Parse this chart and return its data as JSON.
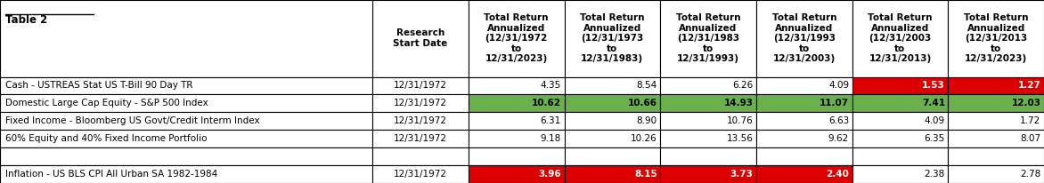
{
  "title": "Table 2",
  "col_headers": [
    "Research\nStart Date",
    "Total Return\nAnnualized\n(12/31/1972\nto\n12/31/2023)",
    "Total Return\nAnnualized\n(12/31/1973\nto\n12/31/1983)",
    "Total Return\nAnnualized\n(12/31/1983\nto\n12/31/1993)",
    "Total Return\nAnnualized\n(12/31/1993\nto\n12/31/2003)",
    "Total Return\nAnnualized\n(12/31/2003\nto\n12/31/2013)",
    "Total Return\nAnnualized\n(12/31/2013\nto\n12/31/2023)"
  ],
  "rows": [
    {
      "label": "Cash - USTREAS Stat US T-Bill 90 Day TR",
      "start_date": "12/31/1972",
      "values": [
        "4.35",
        "8.54",
        "6.26",
        "4.09",
        "1.53",
        "1.27"
      ],
      "cell_colors": [
        "white",
        "white",
        "white",
        "white",
        "red",
        "red"
      ]
    },
    {
      "label": "Domestic Large Cap Equity - S&P 500 Index",
      "start_date": "12/31/1972",
      "values": [
        "10.62",
        "10.66",
        "14.93",
        "11.07",
        "7.41",
        "12.03"
      ],
      "cell_colors": [
        "green",
        "green",
        "green",
        "green",
        "green",
        "green"
      ]
    },
    {
      "label": "Fixed Income - Bloomberg US Govt/Credit Interm Index",
      "start_date": "12/31/1972",
      "values": [
        "6.31",
        "8.90",
        "10.76",
        "6.63",
        "4.09",
        "1.72"
      ],
      "cell_colors": [
        "white",
        "white",
        "white",
        "white",
        "white",
        "white"
      ]
    },
    {
      "label": "60% Equity and 40% Fixed Income Portfolio",
      "start_date": "12/31/1972",
      "values": [
        "9.18",
        "10.26",
        "13.56",
        "9.62",
        "6.35",
        "8.07"
      ],
      "cell_colors": [
        "white",
        "white",
        "white",
        "white",
        "white",
        "white"
      ]
    },
    {
      "label": "",
      "start_date": "",
      "values": [
        "",
        "",
        "",
        "",
        "",
        ""
      ],
      "cell_colors": [
        "white",
        "white",
        "white",
        "white",
        "white",
        "white"
      ]
    },
    {
      "label": "Inflation - US BLS CPI All Urban SA 1982-1984",
      "start_date": "12/31/1972",
      "values": [
        "3.96",
        "8.15",
        "3.73",
        "2.40",
        "2.38",
        "2.78"
      ],
      "cell_colors": [
        "red",
        "red",
        "red",
        "red",
        "white",
        "white"
      ]
    }
  ],
  "green_color": "#6ab04c",
  "red_color": "#dd0000",
  "header_bg": "#ffffff",
  "row_colors": [
    "#ffffff",
    "#f5f5f5"
  ],
  "font_size": 7.5,
  "header_font_size": 7.5
}
